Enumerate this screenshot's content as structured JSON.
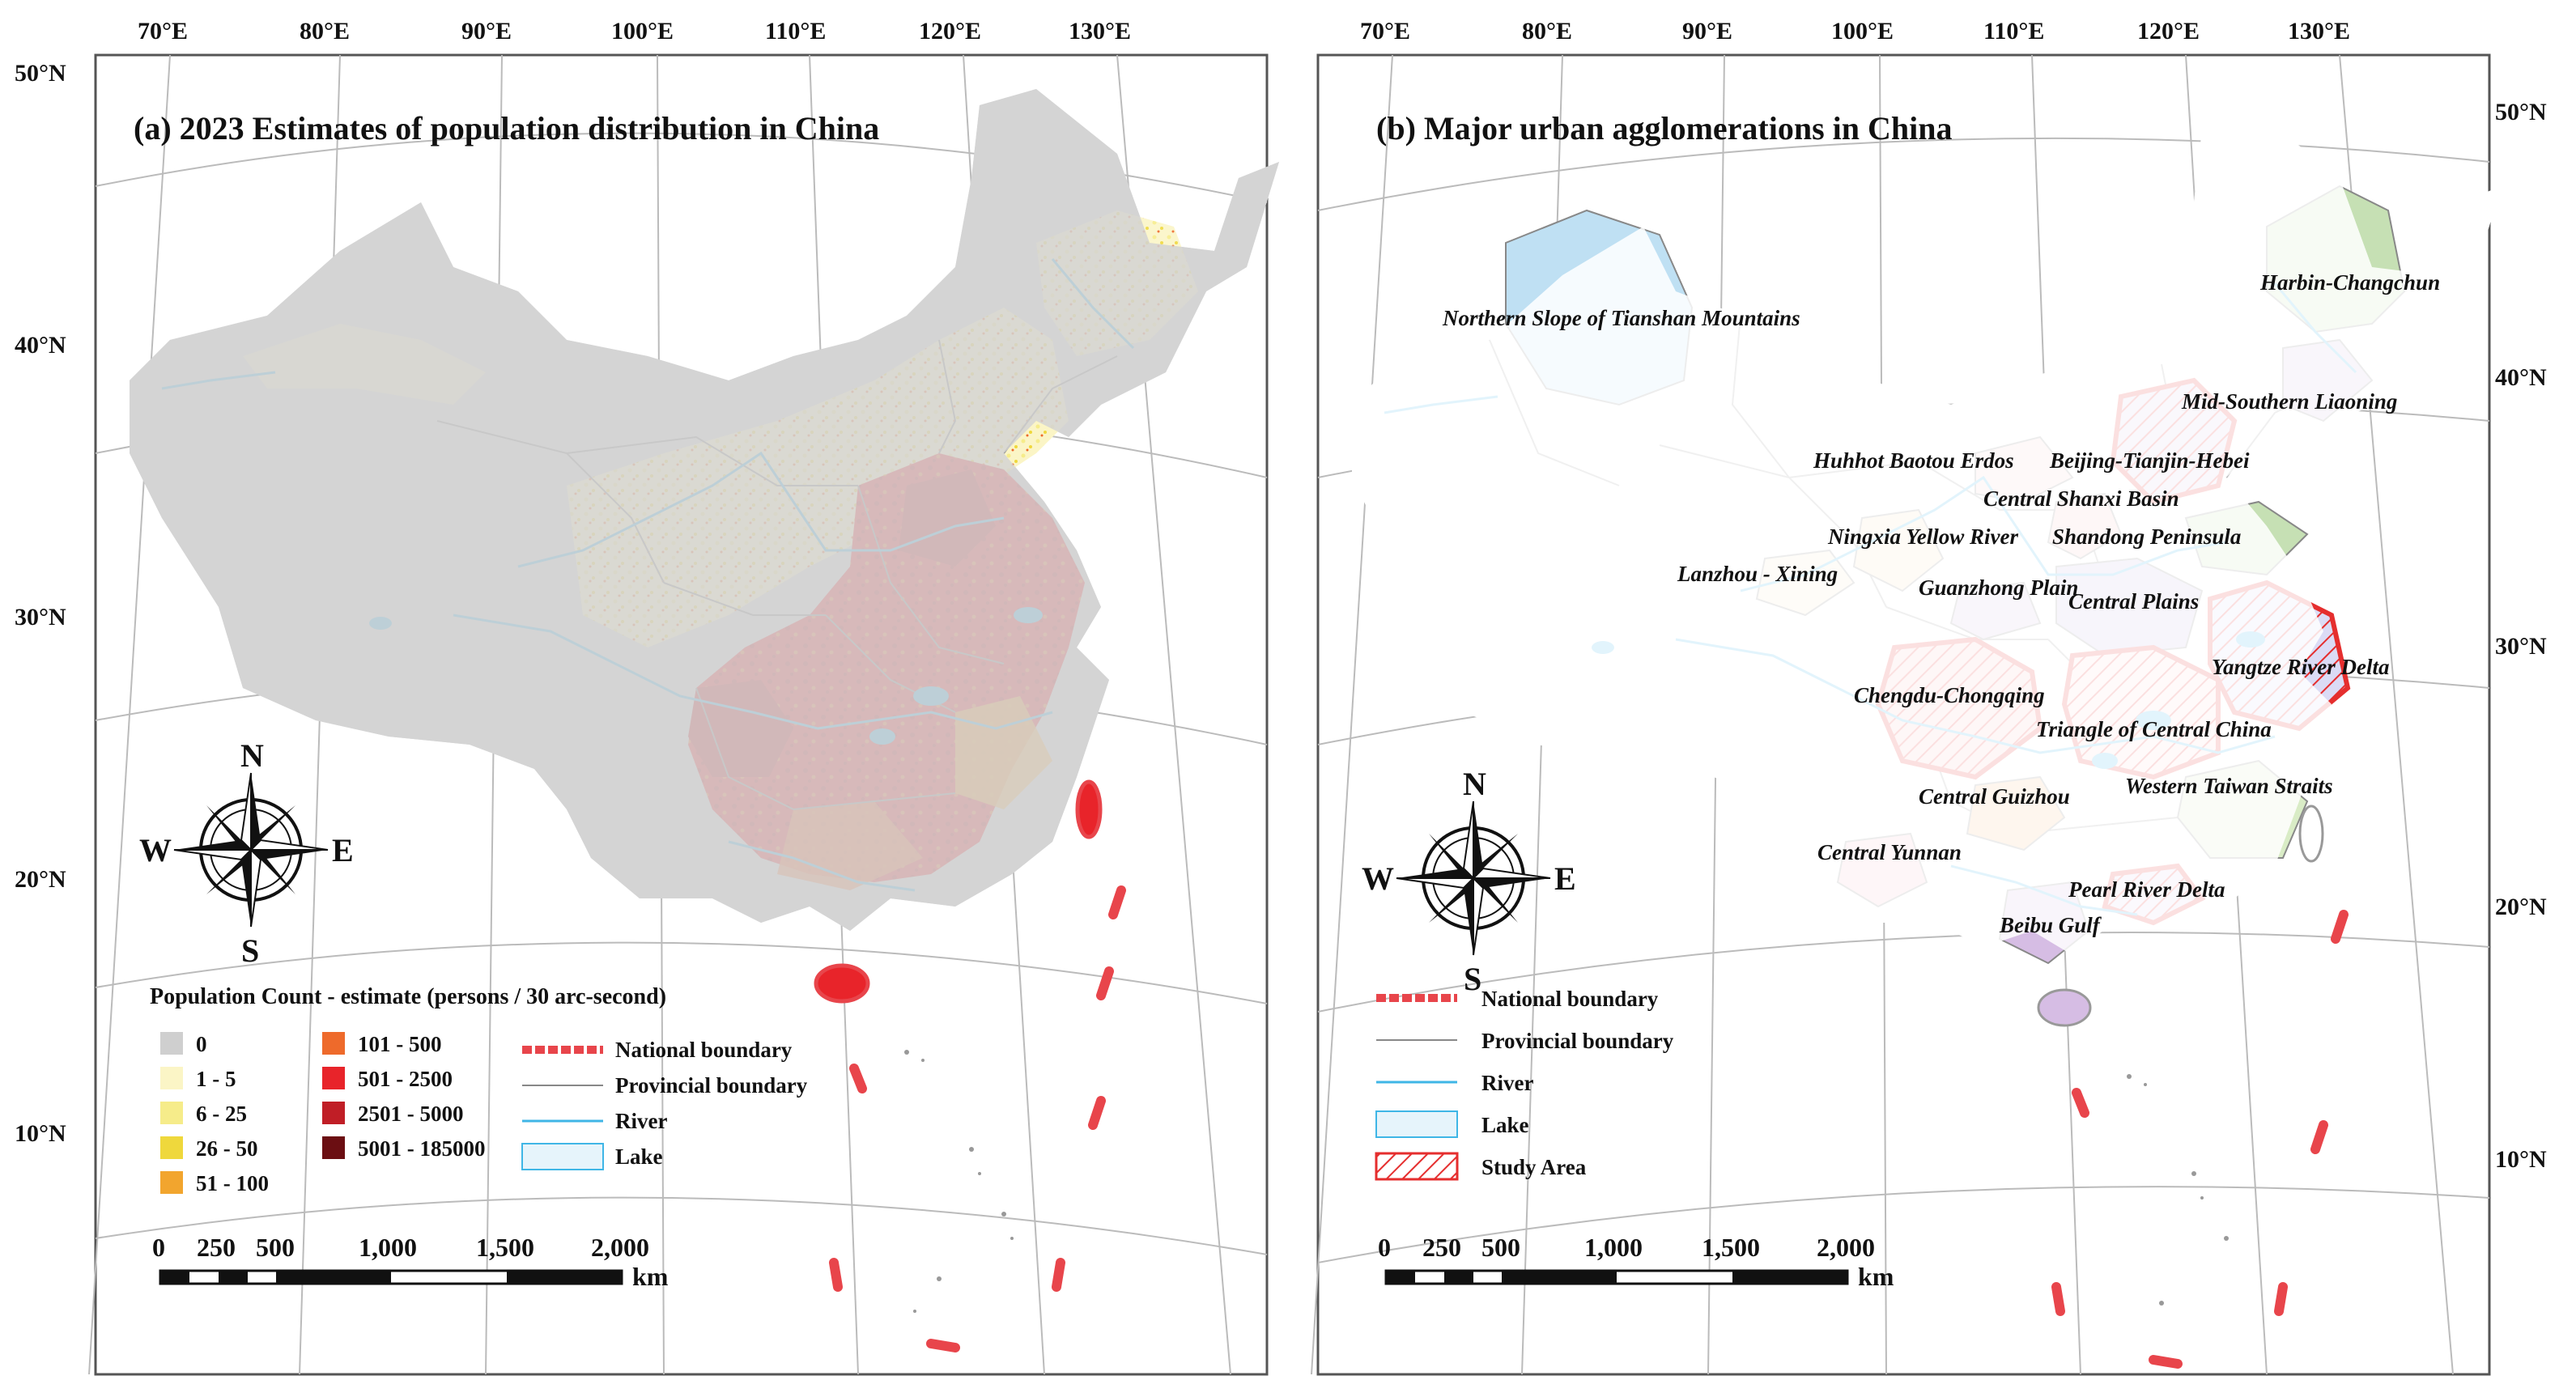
{
  "panel_a": {
    "title": "(a) 2023 Estimates of population distribution in China",
    "lon_ticks": [
      "70°E",
      "80°E",
      "90°E",
      "100°E",
      "110°E",
      "120°E",
      "130°E"
    ],
    "lat_ticks": [
      "50°N",
      "40°N",
      "30°N",
      "20°N",
      "10°N"
    ],
    "legend_heading": "Population Count - estimate (persons / 30 arc-second)",
    "legend_classes": [
      {
        "label": "0",
        "color": "#cfcfcf"
      },
      {
        "label": "1 - 5",
        "color": "#fbf5c6"
      },
      {
        "label": "6 - 25",
        "color": "#f6ec8a"
      },
      {
        "label": "26 - 50",
        "color": "#efd83c"
      },
      {
        "label": "51 - 100",
        "color": "#f2a52e"
      },
      {
        "label": "101 - 500",
        "color": "#ee6a2b"
      },
      {
        "label": "501 - 2500",
        "color": "#e8242a"
      },
      {
        "label": "2501 - 5000",
        "color": "#c01e26"
      },
      {
        "label": "5001 - 185000",
        "color": "#6b0e12"
      }
    ],
    "legend_lines": [
      {
        "label": "National boundary",
        "kind": "national"
      },
      {
        "label": "Provincial boundary",
        "kind": "provincial"
      },
      {
        "label": "River",
        "kind": "river"
      },
      {
        "label": "Lake",
        "kind": "lake"
      }
    ],
    "compass": {
      "n": "N",
      "s": "S",
      "e": "E",
      "w": "W"
    },
    "scale": {
      "ticks": [
        "0",
        "250",
        "500",
        "1,000",
        "1,500",
        "2,000"
      ],
      "unit": "km"
    }
  },
  "panel_b": {
    "title": "(b) Major urban agglomerations in China",
    "lon_ticks": [
      "70°E",
      "80°E",
      "90°E",
      "100°E",
      "110°E",
      "120°E",
      "130°E"
    ],
    "lat_ticks": [
      "50°N",
      "40°N",
      "30°N",
      "20°N",
      "10°N"
    ],
    "agglomerations": [
      {
        "name": "Northern Slope of Tianshan Mountains",
        "color": "#bfe0f3",
        "study": false
      },
      {
        "name": "Harbin-Changchun",
        "color": "#c6e0b4",
        "study": false
      },
      {
        "name": "Mid-Southern Liaoning",
        "color": "#d5c3e4",
        "study": true
      },
      {
        "name": "Beijing-Tianjin-Hebei",
        "color": "#c8b4e0",
        "study": true
      },
      {
        "name": "Huhhot Baotou Erdos",
        "color": "#f8d7d8",
        "study": false
      },
      {
        "name": "Central Shanxi Basin",
        "color": "#f6c9c9",
        "study": false
      },
      {
        "name": "Ningxia Yellow River",
        "color": "#f7e1c1",
        "study": false
      },
      {
        "name": "Shandong Peninsula",
        "color": "#c6e0b4",
        "study": false
      },
      {
        "name": "Lanzhou - Xining",
        "color": "#f7ead0",
        "study": false
      },
      {
        "name": "Guanzhong Plain",
        "color": "#d3c4e2",
        "study": false
      },
      {
        "name": "Central Plains",
        "color": "#c7b9e3",
        "study": false
      },
      {
        "name": "Yangtze River Delta",
        "color": "#c8c8ef",
        "study": true
      },
      {
        "name": "Chengdu-Chongqing",
        "color": "#f4a6a6",
        "study": true
      },
      {
        "name": "Triangle of Central China",
        "color": "#f7c6c6",
        "study": true
      },
      {
        "name": "Central Guizhou",
        "color": "#f3bf8a",
        "study": false
      },
      {
        "name": "Western Taiwan Straits",
        "color": "#d9ecc6",
        "study": false
      },
      {
        "name": "Central Yunnan",
        "color": "#f6c4cc",
        "study": false
      },
      {
        "name": "Pearl River Delta",
        "color": "#d7c3e6",
        "study": true
      },
      {
        "name": "Beibu Gulf",
        "color": "#d6bde4",
        "study": false
      }
    ],
    "legend_lines": [
      {
        "label": "National boundary",
        "kind": "national"
      },
      {
        "label": "Provincial boundary",
        "kind": "provincial"
      },
      {
        "label": "River",
        "kind": "river"
      },
      {
        "label": "Lake",
        "kind": "lake"
      },
      {
        "label": "Study Area",
        "kind": "study"
      }
    ],
    "compass": {
      "n": "N",
      "s": "S",
      "e": "E",
      "w": "W"
    },
    "scale": {
      "ticks": [
        "0",
        "250",
        "500",
        "1,000",
        "1,500",
        "2,000"
      ],
      "unit": "km"
    }
  },
  "colors": {
    "national_boundary": "#e8454b",
    "provincial_boundary": "#888888",
    "river": "#3fb6e6",
    "lake_fill": "#e6f4fb",
    "frame": "#555555"
  }
}
